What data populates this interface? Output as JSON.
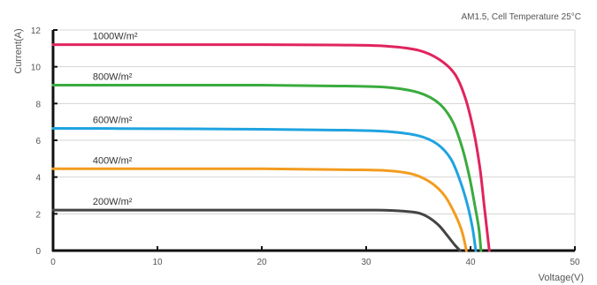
{
  "chart_data": {
    "type": "line",
    "condition_note": "AM1.5, Cell Temperature 25°C",
    "xlabel": "Voltage(V)",
    "ylabel": "Current(A)",
    "xlim": [
      0,
      50
    ],
    "ylim": [
      0,
      12
    ],
    "x_ticks": [
      0,
      10,
      20,
      30,
      40,
      50
    ],
    "y_ticks": [
      0,
      2,
      4,
      6,
      8,
      10,
      12
    ],
    "grid": "horizontal",
    "series": [
      {
        "name": "1000W/m²",
        "color": "#e0245e",
        "points": [
          [
            0,
            11.2
          ],
          [
            10,
            11.2
          ],
          [
            20,
            11.2
          ],
          [
            28,
            11.18
          ],
          [
            32,
            11.12
          ],
          [
            35,
            10.9
          ],
          [
            37,
            10.4
          ],
          [
            38.5,
            9.6
          ],
          [
            39.5,
            8.3
          ],
          [
            40.3,
            6.5
          ],
          [
            40.9,
            4.5
          ],
          [
            41.3,
            2.5
          ],
          [
            41.6,
            1.0
          ],
          [
            41.8,
            0
          ]
        ]
      },
      {
        "name": "800W/m²",
        "color": "#3aab3e",
        "points": [
          [
            0,
            9.0
          ],
          [
            10,
            9.0
          ],
          [
            20,
            9.0
          ],
          [
            28,
            8.95
          ],
          [
            32,
            8.88
          ],
          [
            35,
            8.6
          ],
          [
            37,
            8.0
          ],
          [
            38.3,
            7.0
          ],
          [
            39.2,
            5.6
          ],
          [
            39.9,
            4.0
          ],
          [
            40.4,
            2.5
          ],
          [
            40.8,
            1.2
          ],
          [
            41.0,
            0
          ]
        ]
      },
      {
        "name": "600W/m²",
        "color": "#1fa3e0",
        "points": [
          [
            0,
            6.65
          ],
          [
            10,
            6.63
          ],
          [
            20,
            6.6
          ],
          [
            28,
            6.55
          ],
          [
            32,
            6.48
          ],
          [
            35,
            6.25
          ],
          [
            36.8,
            5.8
          ],
          [
            38.1,
            5.0
          ],
          [
            39.0,
            3.8
          ],
          [
            39.7,
            2.5
          ],
          [
            40.2,
            1.2
          ],
          [
            40.5,
            0
          ]
        ]
      },
      {
        "name": "400W/m²",
        "color": "#f39c1f",
        "points": [
          [
            0,
            4.45
          ],
          [
            10,
            4.45
          ],
          [
            20,
            4.45
          ],
          [
            28,
            4.4
          ],
          [
            32,
            4.35
          ],
          [
            34.5,
            4.15
          ],
          [
            36.2,
            3.7
          ],
          [
            37.5,
            3.0
          ],
          [
            38.5,
            2.0
          ],
          [
            39.2,
            1.0
          ],
          [
            39.6,
            0
          ]
        ]
      },
      {
        "name": "200W/m²",
        "color": "#444444",
        "points": [
          [
            0,
            2.2
          ],
          [
            10,
            2.2
          ],
          [
            20,
            2.2
          ],
          [
            28,
            2.2
          ],
          [
            31,
            2.2
          ],
          [
            33.5,
            2.15
          ],
          [
            35,
            2.05
          ],
          [
            36,
            1.8
          ],
          [
            37,
            1.35
          ],
          [
            37.8,
            0.8
          ],
          [
            38.5,
            0.3
          ],
          [
            39,
            0
          ]
        ]
      }
    ]
  }
}
